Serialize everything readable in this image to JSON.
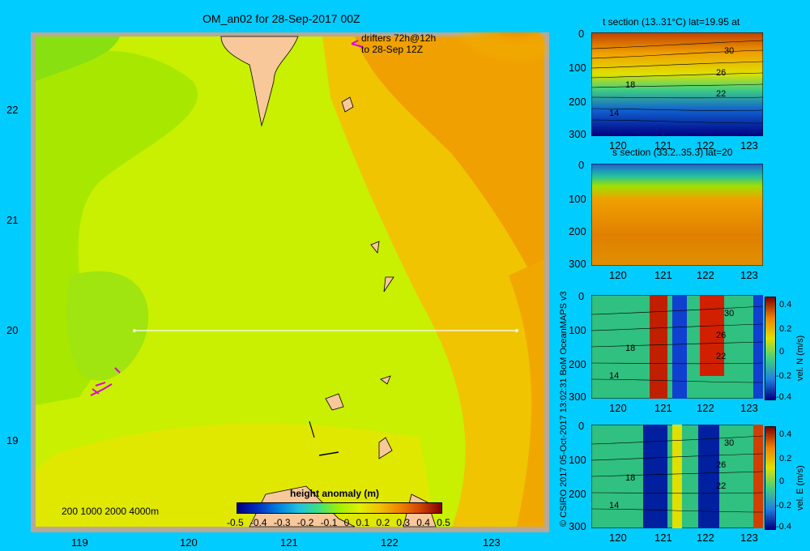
{
  "map": {
    "title": "OM_an02 for 28-Sep-2017 00Z",
    "drifters_line1": "drifters 72h@12h",
    "drifters_line2": "to 28-Sep 12Z",
    "lon_ticks": [
      "119",
      "120",
      "121",
      "122",
      "123"
    ],
    "lat_ticks": [
      "22",
      "21",
      "20",
      "19"
    ],
    "depth_legend": "200  1000  2000  4000m",
    "colorbar": {
      "title": "height anomaly (m)",
      "labels": [
        "-0.5",
        "-0.4",
        "-0.3",
        "-0.2",
        "-0.1",
        "0",
        "0.1",
        "0.2",
        "0.3",
        "0.4",
        "0.5"
      ],
      "colors": [
        "#00007f",
        "#0030c0",
        "#0080e0",
        "#20c0e0",
        "#40e080",
        "#a0f000",
        "#e0f000",
        "#f0c000",
        "#f08000",
        "#d04000",
        "#800000"
      ]
    },
    "credit": "© CSIRO 2017   05-Oct-2017 13:02:31 BoM OceanMAPS v3",
    "colors": {
      "background": "#00ccff",
      "land": "#f8c89a",
      "shelf": "#b8a898",
      "drifter": "#e000e0",
      "section_line": "#ffffff"
    }
  },
  "sections": [
    {
      "title": "t section (13..31°C) lat=19.95 at",
      "x_ticks": [
        "120",
        "121",
        "122",
        "123"
      ],
      "y_ticks": [
        "0",
        "100",
        "200",
        "300"
      ],
      "contour_labels": [
        "30",
        "26",
        "22",
        "18",
        "14"
      ]
    },
    {
      "title": "s section (33.2..35.3) lat=20",
      "x_ticks": [
        "120",
        "121",
        "122",
        "123"
      ],
      "y_ticks": [
        "0",
        "100",
        "200",
        "300"
      ]
    },
    {
      "title": "",
      "x_ticks": [
        "120",
        "121",
        "122",
        "123"
      ],
      "y_ticks": [
        "0",
        "100",
        "200",
        "300"
      ],
      "contour_labels": [
        "30",
        "26",
        "22",
        "18",
        "14"
      ],
      "cbar_label": "vel. N (m/s)",
      "cbar_ticks": [
        "0.4",
        "0.2",
        "0",
        "-0.2",
        "-0.4"
      ]
    },
    {
      "title": "",
      "x_ticks": [
        "120",
        "121",
        "122",
        "123"
      ],
      "y_ticks": [
        "0",
        "100",
        "200",
        "300"
      ],
      "contour_labels": [
        "30",
        "26",
        "22",
        "18",
        "14"
      ],
      "cbar_label": "vel. E (m/s)",
      "cbar_ticks": [
        "0.4",
        "0.2",
        "0",
        "-0.2",
        "-0.4"
      ]
    }
  ]
}
